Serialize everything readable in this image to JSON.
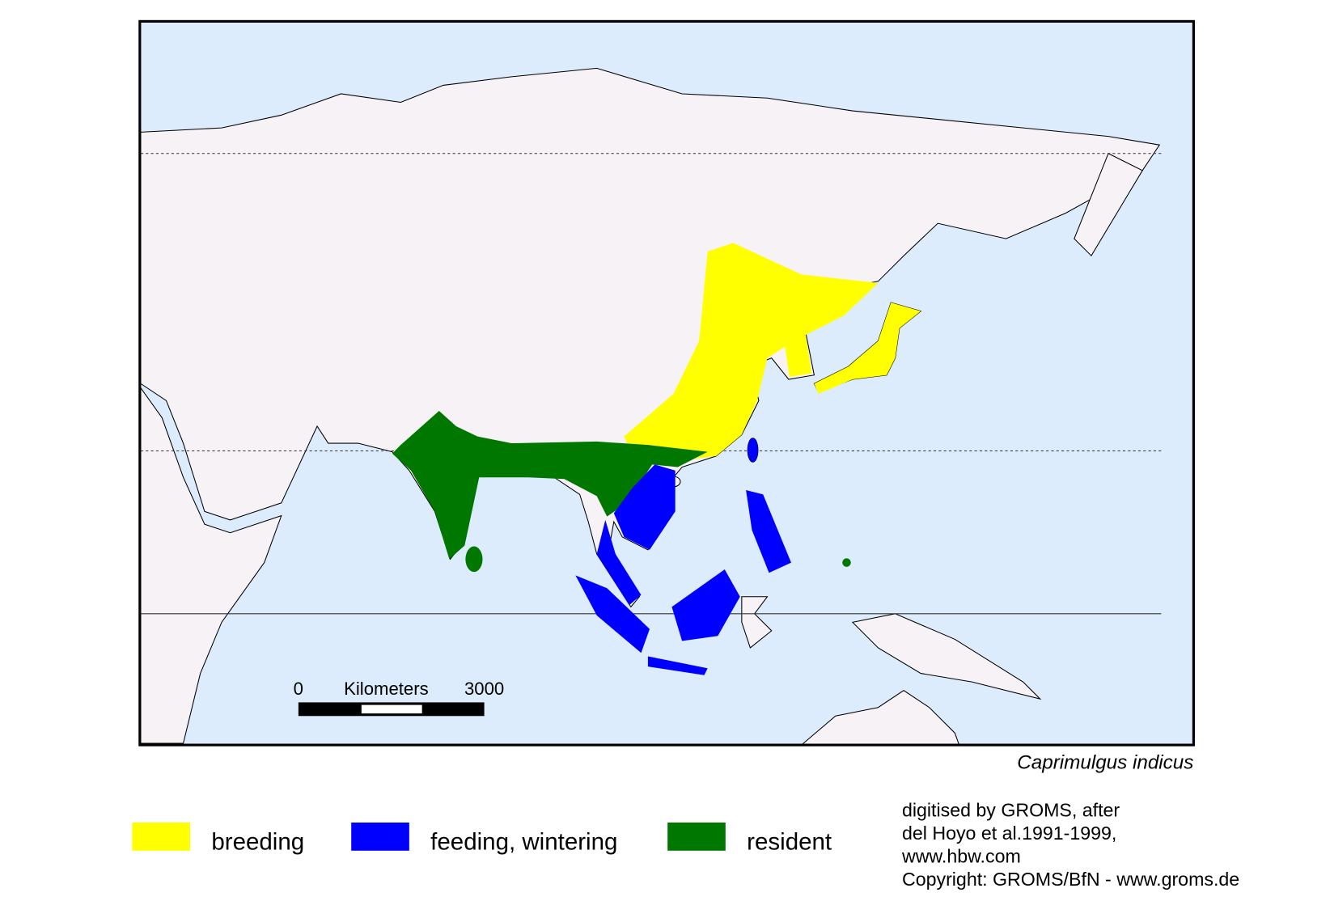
{
  "map": {
    "species": "Caprimulgus indicus",
    "scale": {
      "start": 0,
      "unit": "Kilometers",
      "end": 3000
    },
    "legend": [
      {
        "label": "breeding",
        "color": "#ffff00"
      },
      {
        "label": "feeding, wintering",
        "color": "#0000ff"
      },
      {
        "label": "resident",
        "color": "#007800"
      }
    ],
    "credits": [
      "digitised by GROMS, after",
      "del Hoyo et al.1991-1999,",
      "www.hbw.com",
      "Copyright: GROMS/BfN - www.groms.de"
    ]
  }
}
